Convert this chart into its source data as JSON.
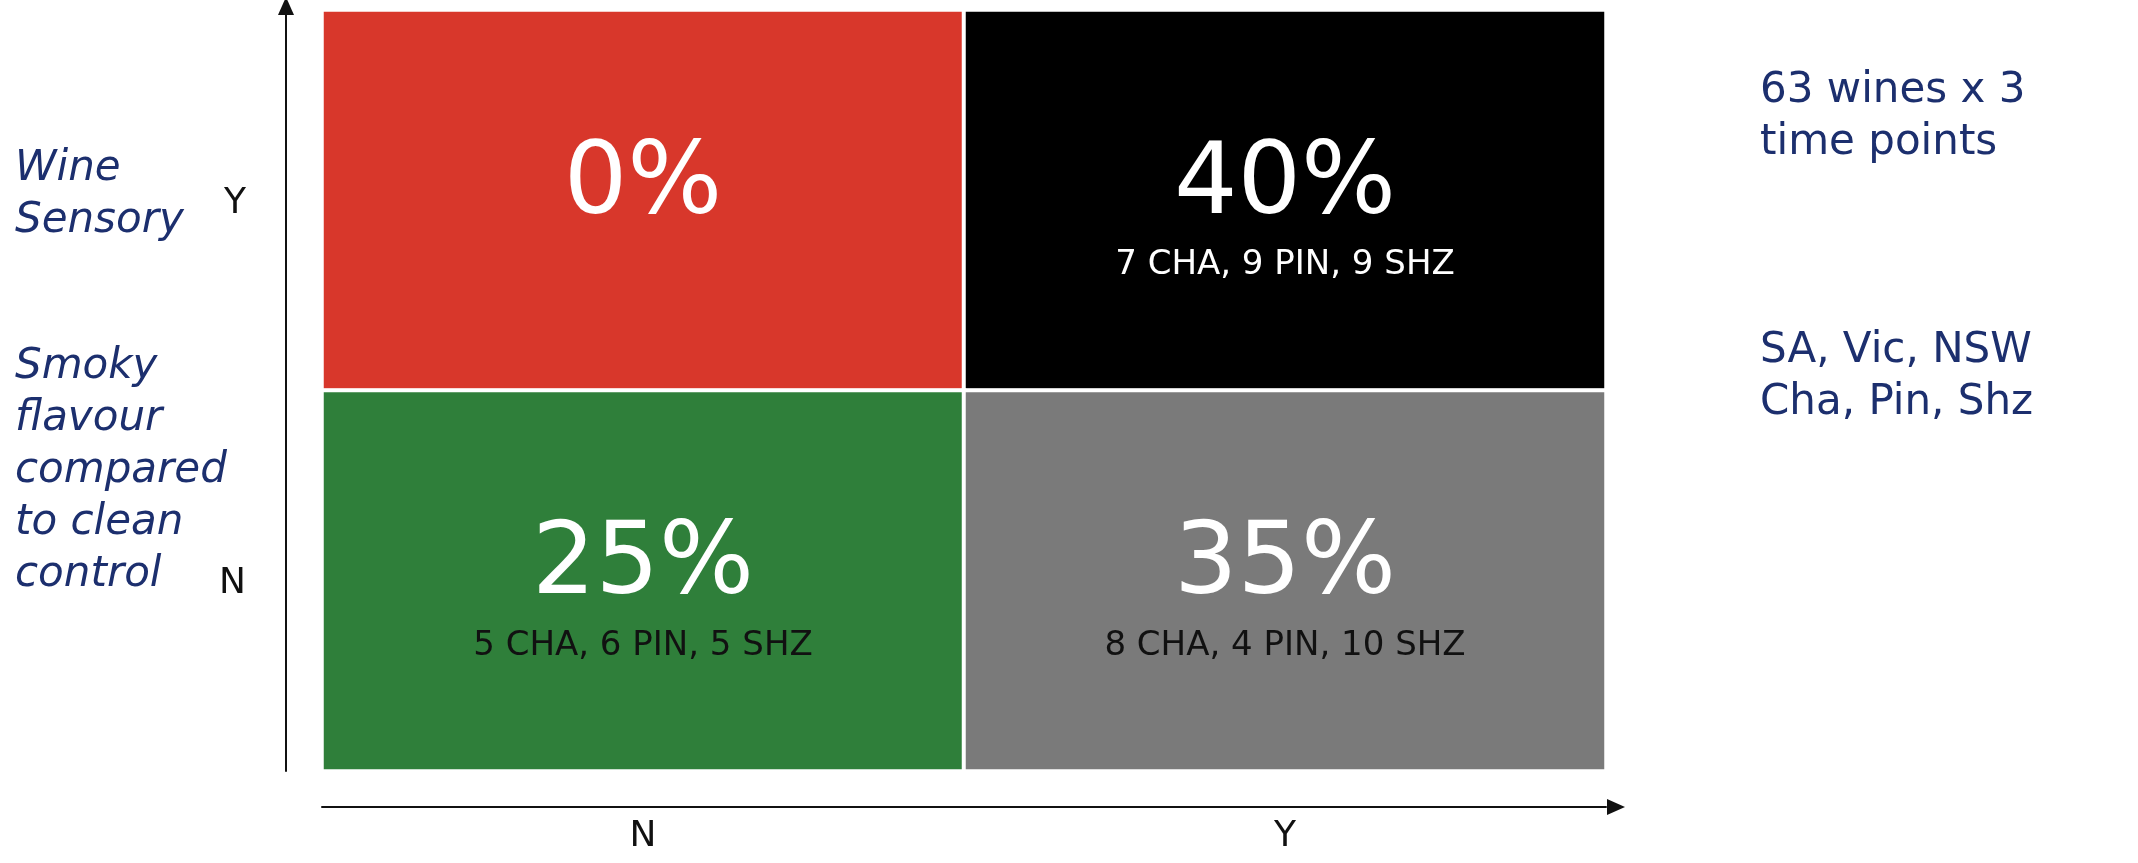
{
  "chart_data": {
    "type": "heatmap",
    "categories": [
      "N",
      "Y"
    ],
    "y_categories": [
      "Y",
      "N"
    ],
    "cells": [
      [
        0,
        40
      ],
      [
        25,
        35
      ]
    ],
    "cell_labels": [
      [
        "0%",
        "40%"
      ],
      [
        "25%",
        "35%"
      ]
    ],
    "colors": [
      [
        "#d8372b",
        "#000000"
      ],
      [
        "#2f7f3a",
        "#7a7a7a"
      ]
    ],
    "ylabel": "Wine Sensory",
    "annotations": [
      "Smoky flavour compared to clean control",
      "63 wines x 3 time points",
      "SA, Vic, NSW",
      "Cha, Pin, Shz",
      "7 CHA, 9 PIN, 9 SHZ",
      "5 CHA, 6 PIN, 5 SHZ",
      "8 CHA, 4 PIN, 10 SHZ"
    ]
  }
}
